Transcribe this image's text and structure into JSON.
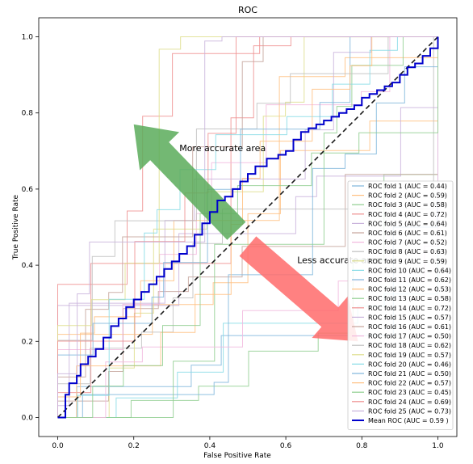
{
  "chart_data": {
    "type": "line",
    "title": "ROC",
    "xlabel": "False Positive Rate",
    "ylabel": "True Positive Rate",
    "xlim": [
      -0.05,
      1.05
    ],
    "ylim": [
      -0.05,
      1.05
    ],
    "xticks": [
      "0.0",
      "0.2",
      "0.4",
      "0.6",
      "0.8",
      "1.0"
    ],
    "yticks": [
      "0.0",
      "0.2",
      "0.4",
      "0.6",
      "0.8",
      "1.0"
    ],
    "grid": false,
    "legend_position": "lower right",
    "diagonal": {
      "x": [
        0,
        1
      ],
      "y": [
        0,
        1
      ],
      "style": "dashed",
      "color": "#1a1a1a"
    },
    "annotations": {
      "more": {
        "text": "More accurate area",
        "arrow_color": "#5aab5a",
        "from": [
          0.47,
          0.49
        ],
        "to": [
          0.2,
          0.77
        ]
      },
      "less": {
        "text": "Less accurate area",
        "arrow_color": "#ff6b6b",
        "from": [
          0.5,
          0.45
        ],
        "to": [
          0.79,
          0.2
        ]
      }
    },
    "series": [
      {
        "name": "ROC fold 1 (AUC = 0.44)",
        "color": "#7fb6dc"
      },
      {
        "name": "ROC fold 2 (AUC = 0.59)",
        "color": "#ffbf80"
      },
      {
        "name": "ROC fold 3 (AUC = 0.58)",
        "color": "#8fce8f"
      },
      {
        "name": "ROC fold 4 (AUC = 0.72)",
        "color": "#ee8f8f"
      },
      {
        "name": "ROC fold 5 (AUC = 0.64)",
        "color": "#c9b3dc"
      },
      {
        "name": "ROC fold 6 (AUC = 0.61)",
        "color": "#c6a39b"
      },
      {
        "name": "ROC fold 7 (AUC = 0.52)",
        "color": "#f2b9de"
      },
      {
        "name": "ROC fold 8 (AUC = 0.63)",
        "color": "#bfbfbf"
      },
      {
        "name": "ROC fold 9 (AUC = 0.59)",
        "color": "#dede8c"
      },
      {
        "name": "ROC fold 10 (AUC = 0.64)",
        "color": "#86dbe6"
      },
      {
        "name": "ROC fold 11 (AUC = 0.62)",
        "color": "#7fb6dc"
      },
      {
        "name": "ROC fold 12 (AUC = 0.53)",
        "color": "#ffbf80"
      },
      {
        "name": "ROC fold 13 (AUC = 0.58)",
        "color": "#8fce8f"
      },
      {
        "name": "ROC fold 14 (AUC = 0.72)",
        "color": "#ee8f8f"
      },
      {
        "name": "ROC fold 15 (AUC = 0.57)",
        "color": "#c9b3dc"
      },
      {
        "name": "ROC fold 16 (AUC = 0.61)",
        "color": "#c6a39b"
      },
      {
        "name": "ROC fold 17 (AUC = 0.50)",
        "color": "#f2b9de"
      },
      {
        "name": "ROC fold 18 (AUC = 0.62)",
        "color": "#bfbfbf"
      },
      {
        "name": "ROC fold 19 (AUC = 0.57)",
        "color": "#dede8c"
      },
      {
        "name": "ROC fold 20 (AUC = 0.46)",
        "color": "#86dbe6"
      },
      {
        "name": "ROC fold 21 (AUC = 0.50)",
        "color": "#7fb6dc"
      },
      {
        "name": "ROC fold 22 (AUC = 0.57)",
        "color": "#ffbf80"
      },
      {
        "name": "ROC fold 23 (AUC = 0.45)",
        "color": "#8fce8f"
      },
      {
        "name": "ROC fold 24 (AUC = 0.69)",
        "color": "#ee8f8f"
      },
      {
        "name": "ROC fold 25 (AUC = 0.73)",
        "color": "#c9b3dc"
      }
    ],
    "mean": {
      "name": "Mean ROC (AUC = 0.59 )",
      "color": "#0000cc",
      "x": [
        0.0,
        0.02,
        0.03,
        0.05,
        0.06,
        0.08,
        0.1,
        0.12,
        0.14,
        0.16,
        0.18,
        0.2,
        0.22,
        0.24,
        0.26,
        0.28,
        0.3,
        0.32,
        0.34,
        0.36,
        0.38,
        0.4,
        0.42,
        0.44,
        0.46,
        0.48,
        0.5,
        0.52,
        0.55,
        0.58,
        0.6,
        0.62,
        0.64,
        0.66,
        0.68,
        0.7,
        0.72,
        0.74,
        0.76,
        0.78,
        0.8,
        0.82,
        0.84,
        0.86,
        0.88,
        0.9,
        0.92,
        0.94,
        0.96,
        0.98,
        1.0
      ],
      "y": [
        0.0,
        0.06,
        0.09,
        0.11,
        0.14,
        0.16,
        0.18,
        0.21,
        0.24,
        0.26,
        0.29,
        0.31,
        0.33,
        0.35,
        0.37,
        0.39,
        0.41,
        0.43,
        0.45,
        0.48,
        0.51,
        0.54,
        0.57,
        0.58,
        0.6,
        0.62,
        0.64,
        0.66,
        0.68,
        0.69,
        0.7,
        0.73,
        0.75,
        0.76,
        0.77,
        0.78,
        0.79,
        0.8,
        0.81,
        0.82,
        0.84,
        0.85,
        0.86,
        0.87,
        0.88,
        0.9,
        0.92,
        0.93,
        0.95,
        0.97,
        1.0
      ]
    }
  }
}
